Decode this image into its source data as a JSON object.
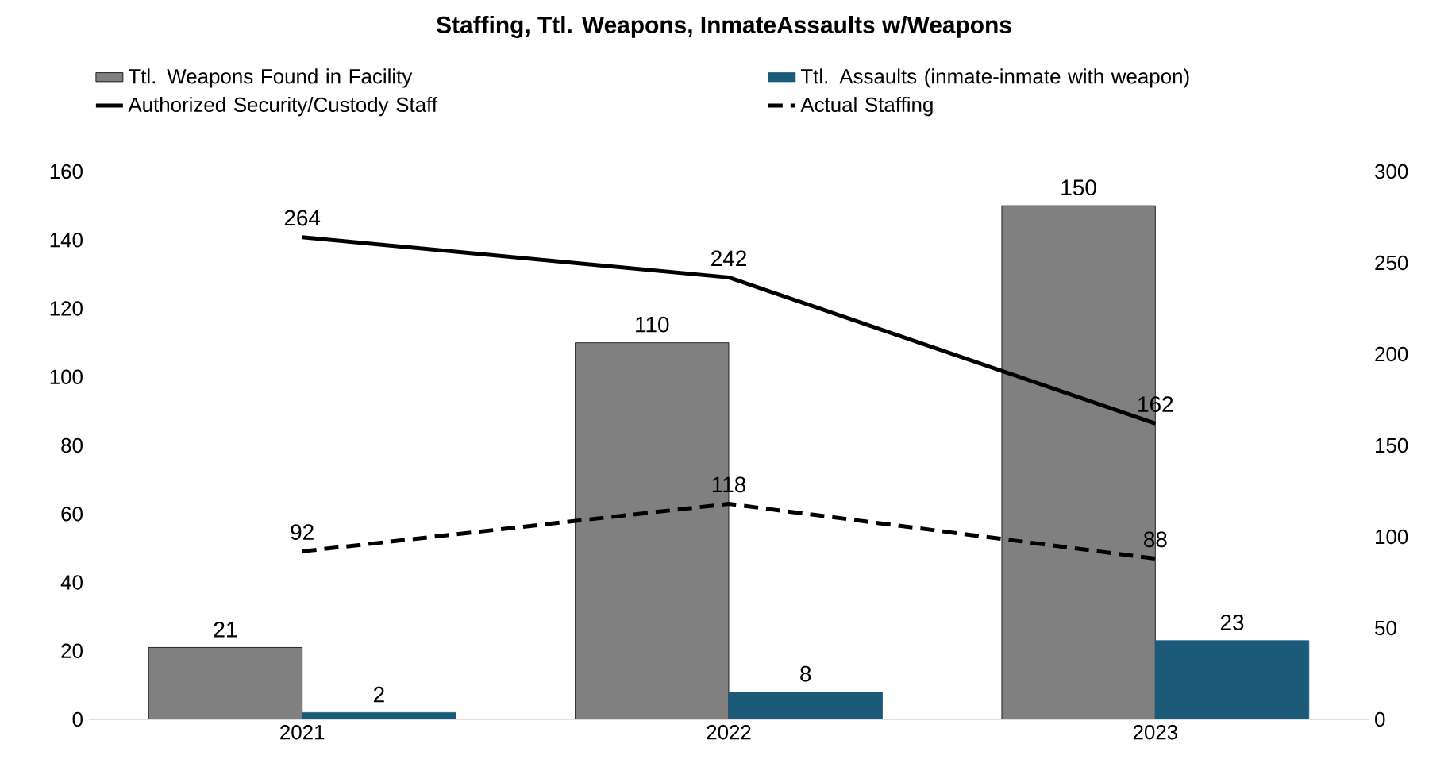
{
  "chart_data": {
    "type": "bar",
    "title": "Staffing, Ttl. Weapons, InmateAssaults w/Weapons",
    "categories": [
      "2021",
      "2022",
      "2023"
    ],
    "series": [
      {
        "name": "Ttl. Weapons Found in Facility",
        "color": "#808080",
        "values": [
          21,
          110,
          150
        ]
      },
      {
        "name": "Ttl. Assaults (inmate-inmate with weapon)",
        "color": "#1b5a78",
        "values": [
          2,
          8,
          23
        ]
      },
      {
        "name": "Authorized Security/Custody Staff",
        "type": "line",
        "axis": "y2",
        "color": "#000000",
        "line_style": "solid",
        "marker": "none",
        "values": [
          264,
          242,
          162
        ]
      },
      {
        "name": "Actual Staffing",
        "type": "line",
        "axis": "y2",
        "color": "#000000",
        "line_style": "dashed",
        "marker": "none",
        "values": [
          92,
          118,
          88
        ]
      }
    ],
    "ylim": [
      0,
      160
    ],
    "yticks": [
      0,
      20,
      40,
      60,
      80,
      100,
      120,
      140,
      160
    ],
    "y2lim": [
      0,
      300
    ],
    "y2ticks": [
      0,
      50,
      100,
      150,
      200,
      250,
      300
    ],
    "data_labels": true,
    "legend": "top"
  }
}
